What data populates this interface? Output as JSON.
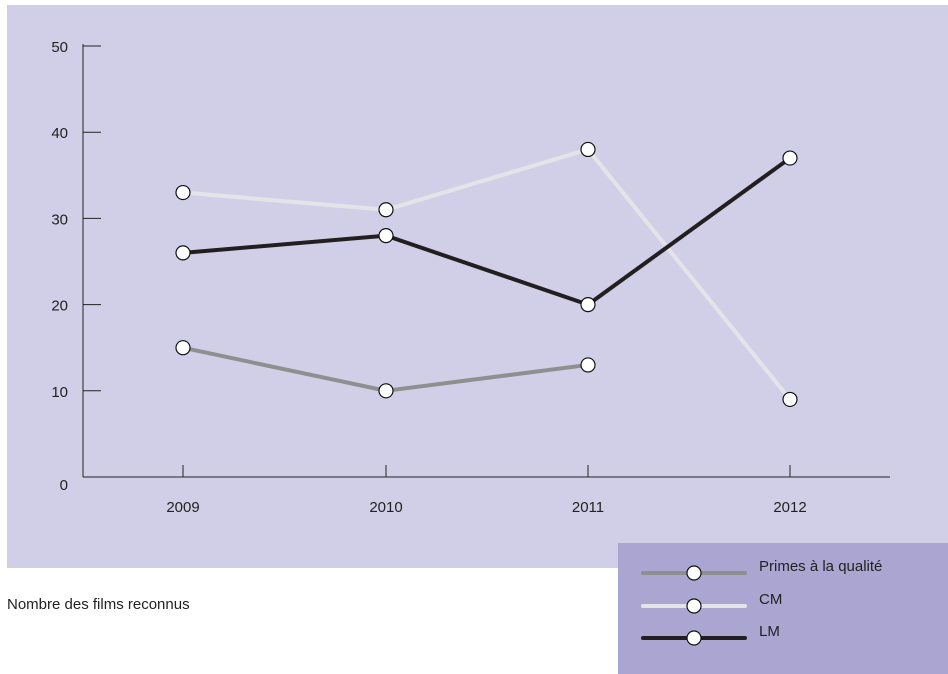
{
  "caption": "Nombre des films reconnus",
  "colors": {
    "plot_background": "#d1cfe7",
    "legend_background": "#aaa6d1",
    "axis": "#222222"
  },
  "chart_data": {
    "type": "line",
    "title": "",
    "xlabel": "",
    "ylabel": "",
    "categories": [
      "2009",
      "2010",
      "2011",
      "2012"
    ],
    "ylim": [
      0,
      50
    ],
    "yticks": [
      "0",
      "10",
      "20",
      "30",
      "40",
      "50"
    ],
    "grid": false,
    "legend_position": "bottom-right",
    "series": [
      {
        "name": "Primes à la qualité",
        "color": "#8f8f8f",
        "values": [
          15,
          10,
          13,
          null
        ]
      },
      {
        "name": "CM",
        "color": "#e4e4e8",
        "values": [
          33,
          31,
          38,
          9
        ]
      },
      {
        "name": "LM",
        "color": "#231f20",
        "values": [
          26,
          28,
          20,
          37
        ]
      }
    ]
  }
}
